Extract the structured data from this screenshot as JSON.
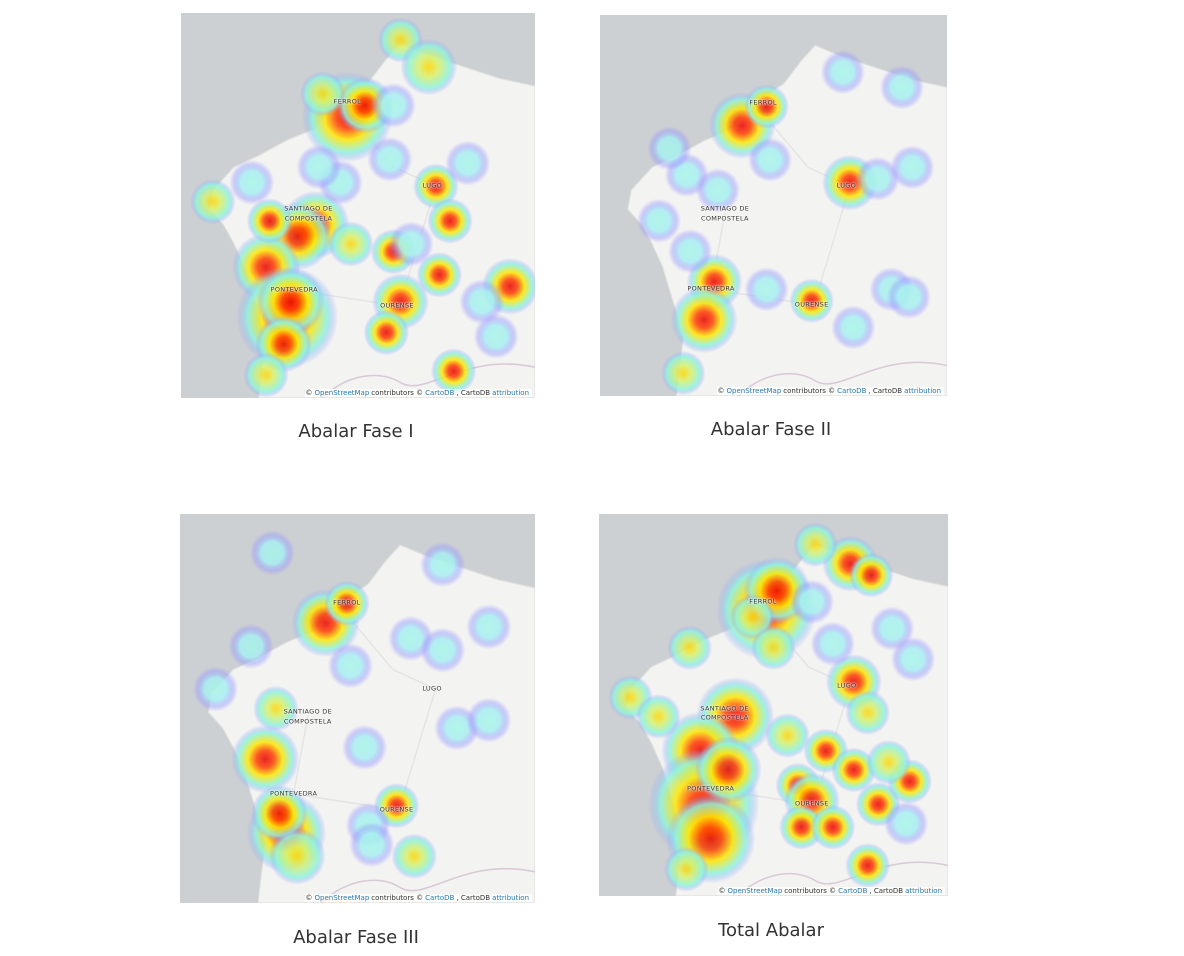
{
  "panels": [
    {
      "caption": "Abalar Fase I",
      "labels": [
        "FERROL",
        "LUGO",
        "SANTIAGO DE",
        "COMPOSTELA",
        "PONTEVEDRA",
        "OURENSE"
      ],
      "attribution": [
        "©",
        "OpenStreetMap",
        "contributors ©",
        "CartoDB",
        ", CartoDB",
        "attribution"
      ]
    },
    {
      "caption": "Abalar Fase II",
      "labels": [
        "FERROL",
        "LUGO",
        "SANTIAGO DE",
        "COMPOSTELA",
        "PONTEVEDRA",
        "OURENSE"
      ],
      "attribution": [
        "©",
        "OpenStreetMap",
        "contributors ©",
        "CartoDB",
        ", CartoDB",
        "attribution"
      ]
    },
    {
      "caption": "Abalar Fase III",
      "labels": [
        "FERROL",
        "LUGO",
        "SANTIAGO DE",
        "COMPOSTELA",
        "PONTEVEDRA",
        "OURENSE"
      ],
      "attribution": [
        "©",
        "OpenStreetMap",
        "contributors ©",
        "CartoDB",
        ", CartoDB",
        "attribution"
      ]
    },
    {
      "caption": "Total Abalar",
      "labels": [
        "FERROL",
        "LUGO",
        "SANTIAGO DE",
        "COMPOSTELA",
        "PONTEVEDRA",
        "OURENSE"
      ],
      "attribution": [
        "©",
        "OpenStreetMap",
        "contributors ©",
        "CartoDB",
        ", CartoDB",
        "attribution"
      ]
    }
  ]
}
